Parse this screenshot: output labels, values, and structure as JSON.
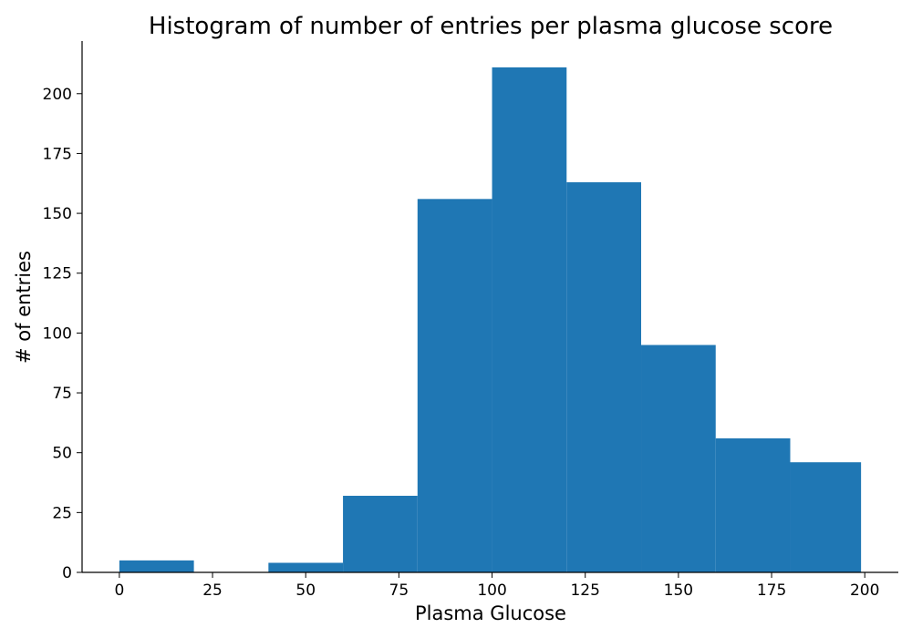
{
  "chart_data": {
    "type": "bar",
    "title": "Histogram of number of entries per plasma glucose score",
    "xlabel": "Plasma Glucose",
    "ylabel": "# of entries",
    "xlim": [
      -10,
      209
    ],
    "ylim": [
      0,
      222
    ],
    "bar_color": "#1f77b4",
    "bins": [
      {
        "start": 0,
        "end": 20,
        "count": 5
      },
      {
        "start": 20,
        "end": 40,
        "count": 0
      },
      {
        "start": 40,
        "end": 60,
        "count": 4
      },
      {
        "start": 60,
        "end": 80,
        "count": 32
      },
      {
        "start": 80,
        "end": 100,
        "count": 156
      },
      {
        "start": 100,
        "end": 120,
        "count": 211
      },
      {
        "start": 120,
        "end": 140,
        "count": 163
      },
      {
        "start": 140,
        "end": 160,
        "count": 95
      },
      {
        "start": 160,
        "end": 180,
        "count": 56
      },
      {
        "start": 180,
        "end": 199,
        "count": 46
      }
    ],
    "x_ticks": [
      0,
      25,
      50,
      75,
      100,
      125,
      150,
      175,
      200
    ],
    "y_ticks": [
      0,
      25,
      50,
      75,
      100,
      125,
      150,
      175,
      200
    ],
    "grid": false,
    "spines": "left-bottom"
  }
}
